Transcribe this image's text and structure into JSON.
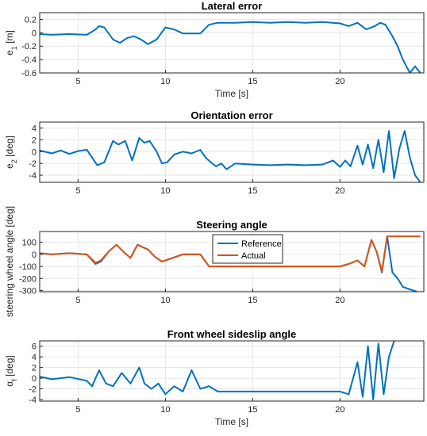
{
  "chart_data": [
    {
      "type": "line",
      "title": "Lateral error",
      "xlabel": "Time [s]",
      "ylabel": "e_1 [m]",
      "xlim": [
        2.8,
        24.8
      ],
      "ylim": [
        -0.6,
        0.3
      ],
      "xticks": [
        5,
        10,
        15,
        20
      ],
      "yticks": [
        0.2,
        0,
        -0.2,
        -0.4,
        -0.6
      ],
      "ytick_labels": [
        "0.2",
        "0",
        "-0.2",
        "-0.4",
        "-0.6"
      ],
      "grid": true,
      "series": [
        {
          "color": "#0072BD",
          "x": [
            2.8,
            3.5,
            4.5,
            5.5,
            6.0,
            6.2,
            6.5,
            7.0,
            7.4,
            7.8,
            8.2,
            8.6,
            9.0,
            9.5,
            10.0,
            10.5,
            11.0,
            12.0,
            12.5,
            13.0,
            14.0,
            15.0,
            16.0,
            17.0,
            18.0,
            19.0,
            20.0,
            20.5,
            21.0,
            21.5,
            22.0,
            22.3,
            22.6,
            23.0,
            23.3,
            23.6,
            24.0,
            24.3,
            24.6
          ],
          "y": [
            -0.02,
            -0.03,
            -0.02,
            -0.03,
            0.05,
            0.1,
            0.08,
            -0.1,
            -0.15,
            -0.08,
            -0.05,
            -0.1,
            -0.17,
            -0.1,
            0.08,
            0.05,
            -0.01,
            -0.01,
            0.12,
            0.15,
            0.15,
            0.16,
            0.15,
            0.16,
            0.15,
            0.16,
            0.14,
            0.1,
            0.15,
            0.05,
            0.1,
            0.15,
            0.12,
            -0.05,
            -0.2,
            -0.4,
            -0.6,
            -0.5,
            -0.6
          ]
        }
      ]
    },
    {
      "type": "line",
      "title": "Orientation error",
      "xlabel": "",
      "ylabel": "e_2 [deg]",
      "xlim": [
        2.8,
        24.8
      ],
      "ylim": [
        -5.2,
        5
      ],
      "xticks": [
        5,
        10,
        15,
        20
      ],
      "yticks": [
        4,
        2,
        0,
        -2,
        -4
      ],
      "ytick_labels": [
        "4",
        "2",
        "0",
        "-2",
        "-4"
      ],
      "grid": true,
      "series": [
        {
          "color": "#0072BD",
          "x": [
            2.8,
            3.5,
            4.0,
            4.5,
            5.0,
            5.5,
            5.8,
            6.1,
            6.5,
            7.0,
            7.3,
            7.7,
            8.1,
            8.5,
            8.8,
            9.1,
            9.5,
            9.8,
            10.1,
            10.5,
            11.0,
            11.5,
            12.0,
            12.3,
            12.6,
            12.9,
            13.2,
            13.5,
            14.0,
            15.0,
            16.0,
            17.0,
            18.0,
            19.0,
            19.6,
            20.0,
            20.3,
            20.6,
            21.0,
            21.3,
            21.6,
            21.9,
            22.2,
            22.5,
            22.8,
            23.1,
            23.4,
            23.7,
            24.0,
            24.3,
            24.6
          ],
          "y": [
            0.2,
            -0.3,
            0.2,
            -0.4,
            0.1,
            0.3,
            -1.0,
            -2.3,
            -1.8,
            1.8,
            1.2,
            1.8,
            -1.5,
            2.3,
            1.5,
            1.8,
            0,
            -2.0,
            -1.8,
            -0.5,
            0,
            -0.3,
            0.3,
            -1.0,
            -1.8,
            -2.5,
            -2.0,
            -3.0,
            -2.0,
            -2.2,
            -2.3,
            -2.2,
            -2.3,
            -2.2,
            -1.5,
            -2.6,
            -1.5,
            -2.5,
            1.0,
            -2.2,
            1.2,
            -2.8,
            2.0,
            -3.5,
            3.5,
            -4.5,
            0.5,
            3.5,
            -1.0,
            -4.0,
            -5.2
          ]
        }
      ]
    },
    {
      "type": "line",
      "title": "Steering angle",
      "xlabel": "",
      "ylabel": "steering wheel angle  [deg]",
      "xlim": [
        2.8,
        24.8
      ],
      "ylim": [
        -310,
        190
      ],
      "xticks": [
        5,
        10,
        15,
        20
      ],
      "yticks": [
        100,
        0,
        -100,
        -200,
        -300
      ],
      "ytick_labels": [
        "100",
        "0",
        "-100",
        "-200",
        "-300"
      ],
      "grid": true,
      "legend": {
        "position": "top-center",
        "entries": [
          "Reference",
          "Actual"
        ]
      },
      "series": [
        {
          "name": "Reference",
          "color": "#0072BD",
          "x": [
            2.8,
            3.5,
            4.5,
            5.5,
            6.0,
            6.3,
            6.8,
            7.2,
            7.6,
            8.0,
            8.4,
            8.7,
            9.0,
            9.4,
            9.8,
            10.2,
            11.0,
            12.0,
            12.5,
            13.0,
            14.0,
            15.0,
            16.0,
            17.0,
            18.0,
            19.0,
            20.0,
            20.5,
            21.0,
            21.4,
            21.8,
            22.1,
            22.4,
            22.7,
            23.0,
            23.3,
            23.6,
            24.0,
            24.4
          ],
          "y": [
            10,
            0,
            10,
            0,
            -80,
            -60,
            30,
            80,
            20,
            -30,
            80,
            60,
            40,
            -20,
            -60,
            -40,
            0,
            0,
            -100,
            -100,
            -100,
            -100,
            -100,
            -100,
            -100,
            -100,
            -100,
            -80,
            -50,
            -100,
            120,
            20,
            -150,
            150,
            -150,
            -200,
            -270,
            -290,
            -310
          ]
        },
        {
          "name": "Actual",
          "color": "#D95319",
          "x": [
            2.8,
            3.5,
            4.5,
            5.5,
            6.0,
            6.3,
            6.8,
            7.2,
            7.6,
            8.0,
            8.4,
            8.7,
            9.0,
            9.4,
            9.8,
            10.2,
            11.0,
            12.0,
            12.5,
            13.0,
            14.0,
            15.0,
            16.0,
            17.0,
            18.0,
            19.0,
            20.0,
            20.5,
            21.0,
            21.4,
            21.8,
            22.1,
            22.4,
            22.7,
            23.0,
            23.5,
            24.0,
            24.6
          ],
          "y": [
            10,
            0,
            10,
            0,
            -70,
            -50,
            30,
            80,
            20,
            -30,
            80,
            60,
            40,
            -20,
            -60,
            -40,
            0,
            0,
            -100,
            -100,
            -100,
            -100,
            -100,
            -100,
            -100,
            -100,
            -100,
            -80,
            -50,
            -100,
            120,
            20,
            -140,
            150,
            150,
            150,
            150,
            150
          ]
        }
      ]
    },
    {
      "type": "line",
      "title": "Front wheel sideslip angle",
      "xlabel": "Time [s]",
      "ylabel": "α_f [deg]",
      "xlim": [
        2.8,
        24.8
      ],
      "ylim": [
        -4.3,
        7
      ],
      "xticks": [
        5,
        10,
        15,
        20
      ],
      "yticks": [
        6,
        4,
        2,
        0,
        -2,
        -4
      ],
      "ytick_labels": [
        "6",
        "4",
        "2",
        "0",
        "-2",
        "-4"
      ],
      "grid": true,
      "series": [
        {
          "color": "#0072BD",
          "x": [
            2.8,
            3.5,
            4.5,
            5.5,
            5.8,
            6.2,
            6.6,
            7.0,
            7.5,
            8.0,
            8.5,
            8.8,
            9.2,
            9.6,
            10.0,
            10.5,
            11.0,
            11.5,
            12.0,
            12.5,
            13.0,
            14.0,
            15.0,
            16.0,
            17.0,
            18.0,
            19.0,
            20.0,
            20.5,
            21.0,
            21.3,
            21.6,
            21.9,
            22.2,
            22.5,
            22.8,
            23.1
          ],
          "y": [
            0.3,
            -0.2,
            0.2,
            -0.5,
            -1.5,
            1.5,
            -1.0,
            -1.5,
            1.0,
            -1.0,
            2.0,
            -1.0,
            -2.0,
            -1.0,
            -3.0,
            -1.5,
            -2.5,
            1.5,
            -2.0,
            -1.5,
            -2.5,
            -2.5,
            -2.5,
            -2.5,
            -2.5,
            -2.5,
            -2.5,
            -2.5,
            -3.0,
            3.0,
            -3.5,
            6.0,
            -4.0,
            6.5,
            -3.0,
            4.0,
            7.0
          ]
        }
      ]
    }
  ]
}
